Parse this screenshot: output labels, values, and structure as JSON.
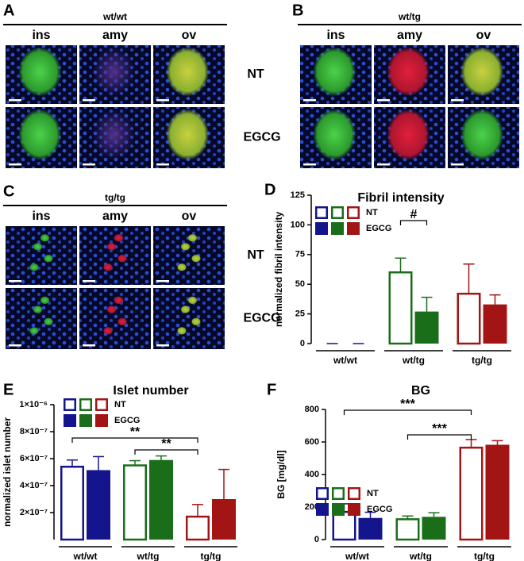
{
  "image_panels": [
    {
      "letter": "A",
      "title": "wt/wt",
      "columns": [
        "ins",
        "amy",
        "ov"
      ],
      "rows": [
        "NT",
        "EGCG"
      ]
    },
    {
      "letter": "B",
      "title": "wt/tg",
      "columns": [
        "ins",
        "amy",
        "ov"
      ]
    },
    {
      "letter": "C",
      "title": "tg/tg",
      "columns": [
        "ins",
        "amy",
        "ov"
      ],
      "rows": [
        "NT",
        "EGCG"
      ]
    }
  ],
  "chart_data": [
    {
      "type": "bar",
      "panel": "D",
      "title": "Fibril intensity",
      "y_label": "normalized fibril intensity",
      "categories": [
        "wt/wt",
        "wt/tg",
        "tg/tg"
      ],
      "colors": [
        "#14148c",
        "#1a6e1a",
        "#a31515"
      ],
      "series": [
        {
          "name": "NT",
          "style": "open",
          "values": [
            0,
            60,
            42
          ],
          "errors": [
            0,
            12,
            25
          ]
        },
        {
          "name": "EGCG",
          "style": "solid",
          "values": [
            0,
            27,
            33
          ],
          "errors": [
            0,
            12,
            8
          ]
        }
      ],
      "ylim": [
        0,
        125
      ],
      "yticks": [
        0,
        25,
        50,
        75,
        100,
        125
      ],
      "annotations": [
        "#"
      ]
    },
    {
      "type": "bar",
      "panel": "E",
      "title": "Islet number",
      "y_label": "normalized islet number",
      "categories": [
        "wt/wt",
        "wt/tg",
        "tg/tg"
      ],
      "colors": [
        "#14148c",
        "#1a6e1a",
        "#a31515"
      ],
      "series": [
        {
          "name": "NT",
          "style": "open",
          "values": [
            5.4e-07,
            5.5e-07,
            1.7e-07
          ],
          "errors": [
            5e-08,
            3.5e-08,
            9e-08
          ]
        },
        {
          "name": "EGCG",
          "style": "solid",
          "values": [
            5.15e-07,
            5.9e-07,
            3e-07
          ],
          "errors": [
            1e-07,
            3e-08,
            2.2e-07
          ]
        }
      ],
      "ylim": [
        0,
        1e-06
      ],
      "yticks": [
        {
          "value": 2e-07,
          "label": "2×10⁻⁷"
        },
        {
          "value": 4e-07,
          "label": "4×10⁻⁷"
        },
        {
          "value": 6e-07,
          "label": "6×10⁻⁷"
        },
        {
          "value": 8e-07,
          "label": "8×10⁻⁷"
        },
        {
          "value": 1e-06,
          "label": "1×10⁻⁶"
        }
      ],
      "annotations": [
        "**",
        "**"
      ]
    },
    {
      "type": "bar",
      "panel": "F",
      "title": "BG",
      "y_label": "BG [mg/dl]",
      "categories": [
        "wt/wt",
        "wt/tg",
        "tg/tg"
      ],
      "colors": [
        "#14148c",
        "#1a6e1a",
        "#a31515"
      ],
      "series": [
        {
          "name": "NT",
          "style": "open",
          "values": [
            170,
            125,
            565
          ],
          "errors": [
            50,
            20,
            50
          ]
        },
        {
          "name": "EGCG",
          "style": "solid",
          "values": [
            133,
            140,
            583
          ],
          "errors": [
            35,
            25,
            25
          ]
        }
      ],
      "ylim": [
        0,
        800
      ],
      "yticks": [
        0,
        200,
        400,
        600,
        800
      ],
      "annotations": [
        "***",
        "***"
      ]
    }
  ]
}
